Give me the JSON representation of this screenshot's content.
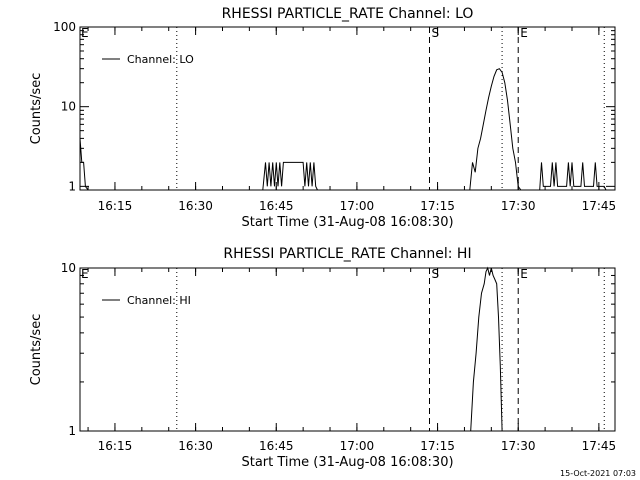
{
  "chart_data": [
    {
      "type": "line",
      "title": "RHESSI PARTICLE_RATE Channel: LO",
      "xlabel": "Start Time (31-Aug-08 16:08:30)",
      "ylabel": "Counts/sec",
      "xlim": [
        "16:08:30",
        "17:48:00"
      ],
      "yscale": "log",
      "ylim": [
        0.9,
        100
      ],
      "x_ticks": [
        "16:15",
        "16:30",
        "16:45",
        "17:00",
        "17:15",
        "17:30",
        "17:45"
      ],
      "y_ticks": [
        {
          "value": 1,
          "label": "1"
        },
        {
          "value": 10,
          "label": "10"
        },
        {
          "value": 100,
          "label": "100"
        }
      ],
      "legend": {
        "label": "Channel: LO",
        "placement": "top-left"
      },
      "markers": [
        {
          "time": "16:08:30",
          "label": "E",
          "style": "dotted"
        },
        {
          "time": "16:26:30",
          "label": "",
          "style": "dotted"
        },
        {
          "time": "17:13:30",
          "label": "S",
          "style": "dashed"
        },
        {
          "time": "17:27:00",
          "label": "",
          "style": "dotted"
        },
        {
          "time": "17:30:00",
          "label": "E",
          "style": "dashed"
        },
        {
          "time": "17:46:00",
          "label": "",
          "style": "dotted"
        }
      ],
      "series": [
        {
          "name": "Channel: LO",
          "points": [
            [
              "16:08:30",
              4
            ],
            [
              "16:08:50",
              2
            ],
            [
              "16:09:10",
              2
            ],
            [
              "16:09:30",
              1
            ],
            [
              "16:10:00",
              0.9
            ],
            [
              "16:42:30",
              0.9
            ],
            [
              "16:43:00",
              2
            ],
            [
              "16:43:20",
              1
            ],
            [
              "16:43:40",
              2
            ],
            [
              "16:44:00",
              1
            ],
            [
              "16:44:20",
              2
            ],
            [
              "16:44:40",
              1
            ],
            [
              "16:45:00",
              2
            ],
            [
              "16:45:20",
              1
            ],
            [
              "16:45:40",
              2
            ],
            [
              "16:46:00",
              1
            ],
            [
              "16:46:20",
              2
            ],
            [
              "16:50:00",
              2
            ],
            [
              "16:50:20",
              1
            ],
            [
              "16:50:40",
              2
            ],
            [
              "16:51:00",
              1
            ],
            [
              "16:51:20",
              2
            ],
            [
              "16:51:40",
              1
            ],
            [
              "16:52:00",
              2
            ],
            [
              "16:52:20",
              1
            ],
            [
              "16:52:40",
              0.9
            ],
            [
              "17:21:00",
              0.9
            ],
            [
              "17:21:30",
              2
            ],
            [
              "17:22:00",
              1.5
            ],
            [
              "17:22:30",
              3
            ],
            [
              "17:23:00",
              4
            ],
            [
              "17:23:30",
              6
            ],
            [
              "17:24:00",
              9
            ],
            [
              "17:24:30",
              13
            ],
            [
              "17:25:00",
              18
            ],
            [
              "17:25:30",
              24
            ],
            [
              "17:26:00",
              29
            ],
            [
              "17:26:30",
              30
            ],
            [
              "17:27:00",
              27
            ],
            [
              "17:27:30",
              20
            ],
            [
              "17:28:00",
              12
            ],
            [
              "17:28:30",
              6
            ],
            [
              "17:29:00",
              3
            ],
            [
              "17:29:30",
              2
            ],
            [
              "17:30:00",
              1
            ],
            [
              "17:30:30",
              0.9
            ],
            [
              "17:34:00",
              0.9
            ],
            [
              "17:34:20",
              2
            ],
            [
              "17:34:40",
              1
            ],
            [
              "17:36:00",
              1
            ],
            [
              "17:36:20",
              2
            ],
            [
              "17:36:40",
              1
            ],
            [
              "17:37:00",
              2
            ],
            [
              "17:37:20",
              1
            ],
            [
              "17:39:00",
              1
            ],
            [
              "17:39:20",
              2
            ],
            [
              "17:39:40",
              1
            ],
            [
              "17:40:00",
              2
            ],
            [
              "17:40:20",
              1
            ],
            [
              "17:41:40",
              1
            ],
            [
              "17:42:00",
              2
            ],
            [
              "17:42:20",
              1
            ],
            [
              "17:44:00",
              1
            ],
            [
              "17:44:20",
              2
            ],
            [
              "17:44:40",
              1
            ],
            [
              "17:46:00",
              1
            ],
            [
              "17:46:20",
              0.9
            ]
          ]
        }
      ]
    },
    {
      "type": "line",
      "title": "RHESSI PARTICLE_RATE Channel: HI",
      "xlabel": "Start Time (31-Aug-08 16:08:30)",
      "ylabel": "Counts/sec",
      "xlim": [
        "16:08:30",
        "17:48:00"
      ],
      "yscale": "log",
      "ylim": [
        1,
        10
      ],
      "x_ticks": [
        "16:15",
        "16:30",
        "16:45",
        "17:00",
        "17:15",
        "17:30",
        "17:45"
      ],
      "y_ticks": [
        {
          "value": 1,
          "label": "1"
        },
        {
          "value": 10,
          "label": "10"
        }
      ],
      "legend": {
        "label": "Channel: HI",
        "placement": "top-left"
      },
      "markers": [
        {
          "time": "16:08:30",
          "label": "E",
          "style": "dotted"
        },
        {
          "time": "16:26:30",
          "label": "",
          "style": "dotted"
        },
        {
          "time": "17:13:30",
          "label": "S",
          "style": "dashed"
        },
        {
          "time": "17:27:00",
          "label": "",
          "style": "dotted"
        },
        {
          "time": "17:30:00",
          "label": "E",
          "style": "dashed"
        },
        {
          "time": "17:46:00",
          "label": "",
          "style": "dotted"
        }
      ],
      "series": [
        {
          "name": "Channel: HI",
          "points": [
            [
              "17:21:10",
              1
            ],
            [
              "17:21:40",
              2
            ],
            [
              "17:22:10",
              3
            ],
            [
              "17:22:40",
              5
            ],
            [
              "17:23:10",
              7
            ],
            [
              "17:23:40",
              8
            ],
            [
              "17:24:00",
              9.5
            ],
            [
              "17:24:20",
              10
            ],
            [
              "17:24:40",
              9
            ],
            [
              "17:25:00",
              10
            ],
            [
              "17:25:20",
              9
            ],
            [
              "17:25:40",
              8.5
            ],
            [
              "17:26:00",
              8
            ],
            [
              "17:26:20",
              5
            ],
            [
              "17:26:40",
              2.5
            ],
            [
              "17:27:00",
              1
            ]
          ]
        }
      ]
    }
  ],
  "footer": {
    "timestamp": "15-Oct-2021 07:03"
  }
}
